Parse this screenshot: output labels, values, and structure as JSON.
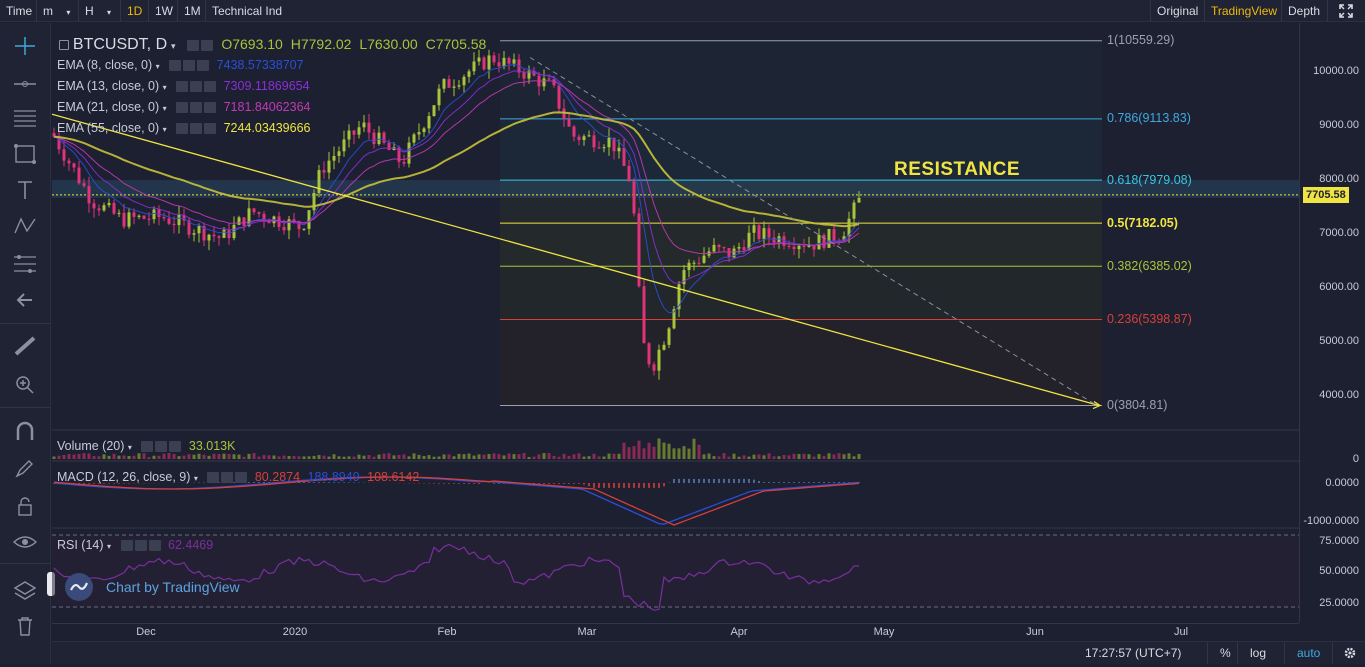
{
  "toolbar": {
    "time": "Time",
    "intervals": [
      "m",
      "H",
      "1D",
      "1W",
      "1M"
    ],
    "technical": "Technical Ind",
    "views": [
      "Original",
      "TradingView",
      "Depth"
    ]
  },
  "symbol": {
    "title": "BTCUSDT, D",
    "open": "O7693.10",
    "high": "H7792.02",
    "low": "L7630.00",
    "close": "C7705.58"
  },
  "indicators": [
    {
      "label": "EMA (8, close, 0)",
      "value": "7438.57338707",
      "color": "#2a4fd6"
    },
    {
      "label": "EMA (13, close, 0)",
      "value": "7309.11869654",
      "color": "#8b2fd9"
    },
    {
      "label": "EMA (21, close, 0)",
      "value": "7181.84062364",
      "color": "#c23ab5"
    },
    {
      "label": "EMA (55, close, 0)",
      "value": "7244.03439666",
      "color": "#f0e442"
    }
  ],
  "fib": [
    {
      "label": "1(10559.29)",
      "price": 10559.29,
      "color": "#9aa0ad"
    },
    {
      "label": "0.786(9113.83)",
      "price": 9113.83,
      "color": "#3fa9e0"
    },
    {
      "label": "0.618(7979.08)",
      "price": 7979.08,
      "color": "#38c6e0"
    },
    {
      "label": "0.5(7182.05)",
      "price": 7182.05,
      "color": "#f0e442"
    },
    {
      "label": "0.382(6385.02)",
      "price": 6385.02,
      "color": "#a8c43a"
    },
    {
      "label": "0.236(5398.87)",
      "price": 5398.87,
      "color": "#d6403a"
    },
    {
      "label": "0(3804.81)",
      "price": 3804.81,
      "color": "#9aa0ad"
    }
  ],
  "annotation": "RESISTANCE",
  "price_axis": [
    "10000.00",
    "9000.00",
    "8000.00",
    "7000.00",
    "6000.00",
    "5000.00",
    "4000.00"
  ],
  "last_price": "7705.58",
  "volume": {
    "label": "Volume (20)",
    "value": "33.013K",
    "axis": "0"
  },
  "macd": {
    "label": "MACD (12, 26, close, 9)",
    "v1": "80.2874",
    "v2": "188.8949",
    "v3": "108.6142",
    "axis": [
      "0.0000",
      "-1000.0000"
    ]
  },
  "rsi": {
    "label": "RSI (14)",
    "value": "62.4469",
    "axis": [
      "75.0000",
      "50.0000",
      "25.0000"
    ]
  },
  "time_axis": [
    "Dec",
    "2020",
    "Feb",
    "Mar",
    "Apr",
    "May",
    "Jun",
    "Jul"
  ],
  "watermark": "Chart by TradingView",
  "status": {
    "clock": "17:27:57 (UTC+7)",
    "percent": "%",
    "log": "log",
    "auto": "auto"
  }
}
